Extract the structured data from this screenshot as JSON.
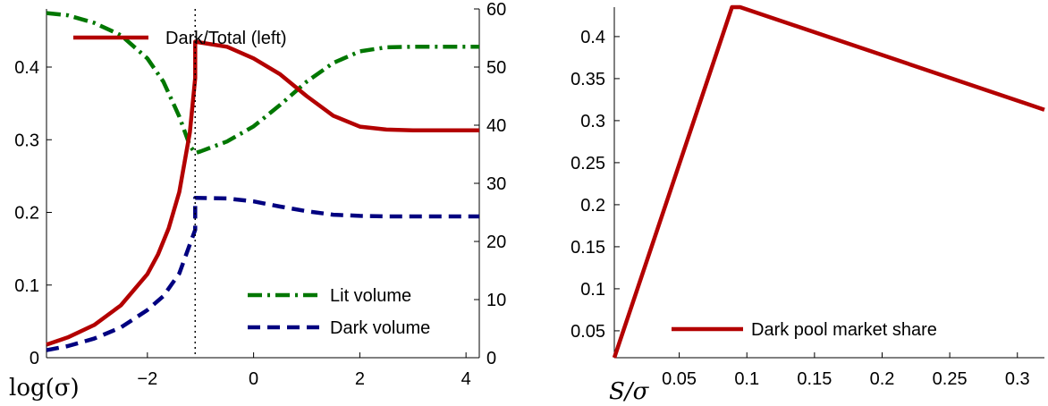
{
  "chart_data": [
    {
      "type": "line",
      "xlabel": "log(σ)",
      "x_ticks": [
        "−2",
        "0",
        "2",
        "4"
      ],
      "x_tick_values": [
        -2,
        0,
        2,
        4
      ],
      "xlim": [
        -3.9,
        4.25
      ],
      "y_left_ticks": [
        "0",
        "0.1",
        "0.2",
        "0.3",
        "0.4"
      ],
      "y_left_tick_values": [
        0,
        0.1,
        0.2,
        0.3,
        0.4
      ],
      "ylim_left": [
        0,
        0.48
      ],
      "y_right_ticks": [
        "0",
        "10",
        "20",
        "30",
        "40",
        "50",
        "60"
      ],
      "y_right_tick_values": [
        0,
        10,
        20,
        30,
        40,
        50,
        60
      ],
      "ylim_right": [
        0,
        60
      ],
      "vline_x": -1.1,
      "series": [
        {
          "name": "Dark/Total (left)",
          "axis": "left",
          "color": "#b30000",
          "style": "solid",
          "x": [
            -3.9,
            -3.5,
            -3.0,
            -2.5,
            -2.0,
            -1.8,
            -1.6,
            -1.4,
            -1.2,
            -1.1,
            -1.1,
            -0.5,
            0.0,
            0.5,
            1.0,
            1.5,
            2.0,
            2.5,
            3.0,
            3.5,
            4.25
          ],
          "y": [
            0.018,
            0.028,
            0.045,
            0.072,
            0.115,
            0.142,
            0.178,
            0.228,
            0.31,
            0.385,
            0.435,
            0.428,
            0.412,
            0.39,
            0.36,
            0.333,
            0.318,
            0.314,
            0.313,
            0.313,
            0.313
          ]
        },
        {
          "name": "Lit volume",
          "axis": "right",
          "color": "#007700",
          "style": "dashdot",
          "x": [
            -3.9,
            -3.5,
            -3.0,
            -2.5,
            -2.0,
            -1.7,
            -1.4,
            -1.2,
            -1.1,
            -1.0,
            -0.5,
            0.0,
            0.5,
            1.0,
            1.5,
            2.0,
            2.5,
            3.0,
            3.5,
            4.25
          ],
          "y": [
            59.3,
            58.9,
            57.6,
            55.5,
            51.5,
            47.5,
            41.5,
            36.5,
            35.2,
            35.5,
            37.2,
            39.8,
            43.5,
            47.5,
            50.7,
            52.7,
            53.4,
            53.5,
            53.5,
            53.5
          ]
        },
        {
          "name": "Dark volume",
          "axis": "right",
          "color": "#000080",
          "style": "dashed",
          "x": [
            -3.9,
            -3.5,
            -3.0,
            -2.5,
            -2.0,
            -1.7,
            -1.4,
            -1.2,
            -1.1,
            -1.1,
            -0.5,
            0.0,
            0.5,
            1.0,
            1.5,
            2.0,
            2.5,
            3.0,
            3.5,
            4.25
          ],
          "y": [
            1.3,
            2.0,
            3.3,
            5.2,
            8.2,
            10.6,
            14.5,
            19.5,
            22.0,
            27.5,
            27.4,
            26.9,
            26.0,
            25.2,
            24.6,
            24.4,
            24.3,
            24.3,
            24.3,
            24.3
          ]
        }
      ],
      "legend": [
        "Dark/Total (left)",
        "Lit volume",
        "Dark volume"
      ]
    },
    {
      "type": "line",
      "xlabel": "S/σ",
      "x_ticks": [
        "0.05",
        "0.1",
        "0.15",
        "0.2",
        "0.25",
        "0.3"
      ],
      "x_tick_values": [
        0.05,
        0.1,
        0.15,
        0.2,
        0.25,
        0.3
      ],
      "xlim": [
        0.002,
        0.32
      ],
      "y_ticks": [
        "0.05",
        "0.1",
        "0.15",
        "0.2",
        "0.25",
        "0.3",
        "0.35",
        "0.4"
      ],
      "y_tick_values": [
        0.05,
        0.1,
        0.15,
        0.2,
        0.25,
        0.3,
        0.35,
        0.4
      ],
      "ylim": [
        0.018,
        0.435
      ],
      "series": [
        {
          "name": "Dark pool market share",
          "color": "#b30000",
          "style": "solid",
          "x": [
            0.002,
            0.089,
            0.095,
            0.32
          ],
          "y": [
            0.018,
            0.435,
            0.435,
            0.313
          ]
        }
      ],
      "legend": [
        "Dark pool market share"
      ]
    }
  ]
}
